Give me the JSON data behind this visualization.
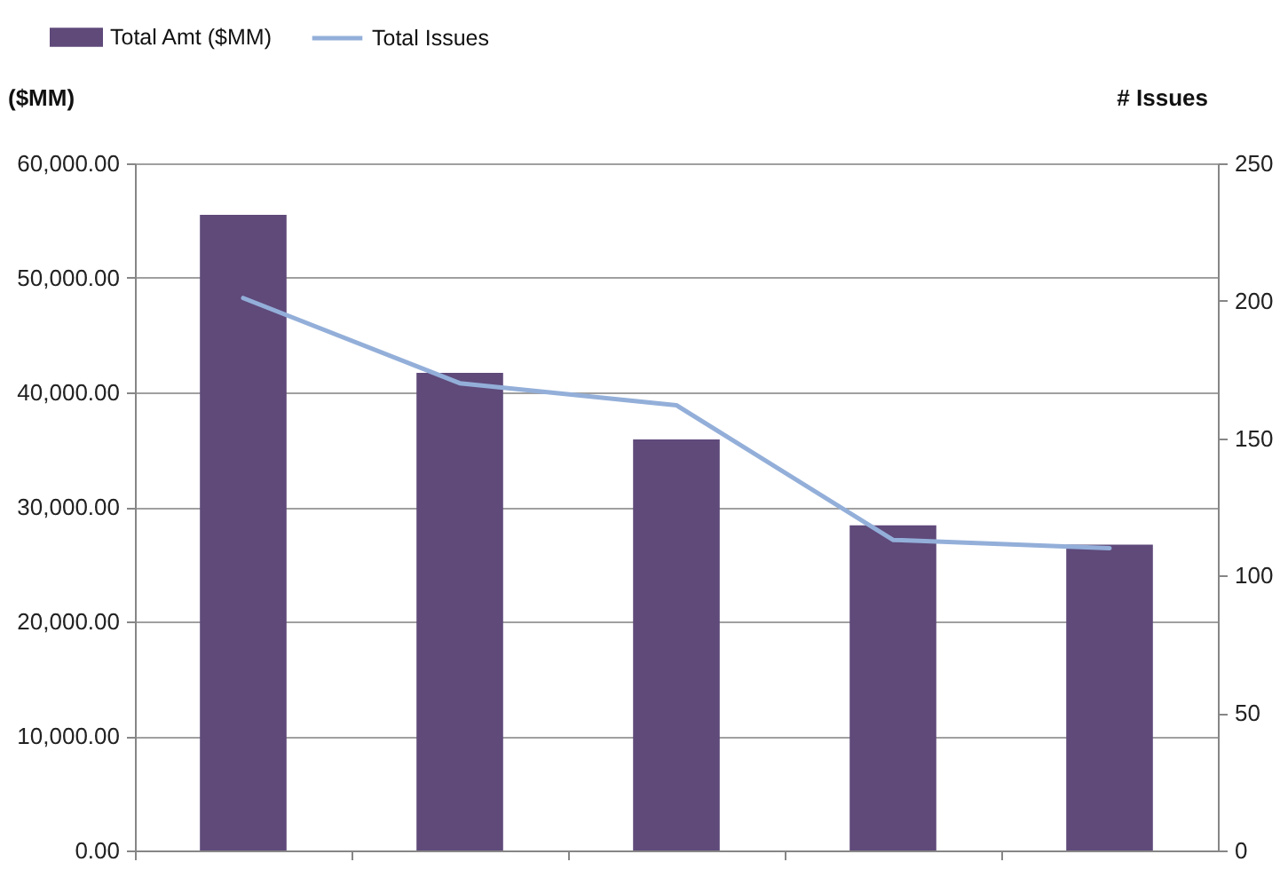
{
  "chart_data": {
    "type": "bar",
    "categories": [
      null,
      null,
      null,
      null,
      null
    ],
    "ylabel": "($MM)",
    "y2label": "# Issues",
    "ylim": [
      0,
      60000
    ],
    "yticks": [
      {
        "value": 0,
        "label": "0.00"
      },
      {
        "value": 10000,
        "label": "10,000.00"
      },
      {
        "value": 20000,
        "label": "20,000.00"
      },
      {
        "value": 30000,
        "label": "30,000.00"
      },
      {
        "value": 40000,
        "label": "40,000.00"
      },
      {
        "value": 50000,
        "label": "50,000.00"
      },
      {
        "value": 60000,
        "label": "60,000.00"
      }
    ],
    "y2lim": [
      0,
      250
    ],
    "y2ticks": [
      0,
      50,
      100,
      150,
      200,
      250
    ],
    "grid": "y",
    "legend": "top left",
    "series": [
      {
        "name": "Total Amt ($MM)",
        "color": "#5f4a7a",
        "values": [
          55500,
          41700,
          35900,
          28400,
          26700
        ]
      },
      {
        "name": "Total Issues",
        "type": "line",
        "axis": "y2",
        "color": "#93afd9",
        "values": [
          201,
          170,
          162,
          113,
          110
        ]
      }
    ]
  }
}
